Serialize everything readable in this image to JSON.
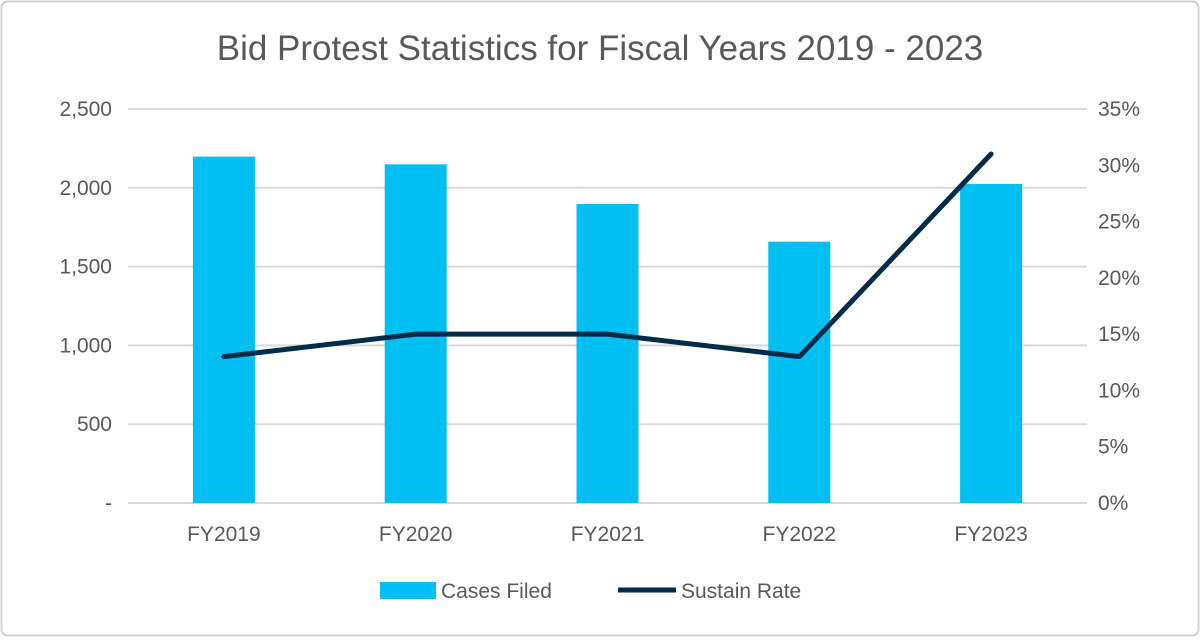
{
  "chart_data": {
    "type": "bar+line",
    "title": "Bid Protest Statistics for Fiscal Years 2019 - 2023",
    "categories": [
      "FY2019",
      "FY2020",
      "FY2021",
      "FY2022",
      "FY2023"
    ],
    "series": [
      {
        "name": "Cases Filed",
        "type": "bar",
        "axis": "left",
        "values": [
          2198,
          2149,
          1897,
          1658,
          2025
        ],
        "color": "#00BFF3"
      },
      {
        "name": "Sustain Rate",
        "type": "line",
        "axis": "right",
        "values": [
          13,
          15,
          15,
          13,
          31
        ],
        "unit": "%",
        "color": "#002B49"
      }
    ],
    "y_left": {
      "range": [
        0,
        2500
      ],
      "ticks": [
        0,
        500,
        1000,
        1500,
        2000,
        2500
      ],
      "tick_labels": [
        "-",
        "500",
        "1,000",
        "1,500",
        "2,000",
        "2,500"
      ]
    },
    "y_right": {
      "range": [
        0,
        35
      ],
      "ticks": [
        0,
        5,
        10,
        15,
        20,
        25,
        30,
        35
      ],
      "tick_labels": [
        "0%",
        "5%",
        "10%",
        "15%",
        "20%",
        "25%",
        "30%",
        "35%"
      ]
    },
    "grid": true,
    "legend": "bottom"
  }
}
